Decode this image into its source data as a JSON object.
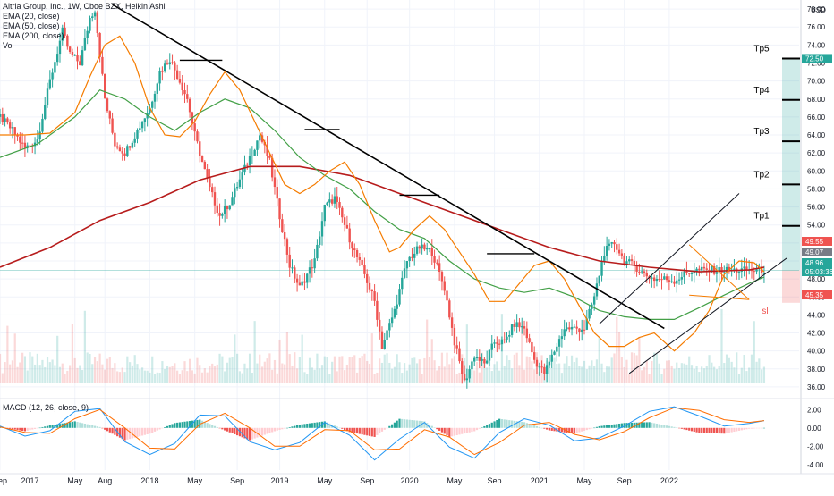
{
  "legend": {
    "title": "Altria Group, Inc., 1W, Cboe BZX, Heikin Ashi",
    "ema20": "EMA (20, close)",
    "ema50": "EMA (50, close)",
    "ema200": "EMA (200, close)",
    "vol": "Vol",
    "macd": "MACD (12, 26, close, 9)"
  },
  "price_axis": {
    "currency": "USD",
    "ticks": [
      "78.00",
      "76.00",
      "74.00",
      "72.00",
      "70.00",
      "68.00",
      "66.00",
      "64.00",
      "62.00",
      "60.00",
      "58.00",
      "56.00",
      "54.00",
      "52.00",
      "50.00",
      "48.00",
      "46.00",
      "44.00",
      "42.00",
      "40.00",
      "38.00",
      "36.00"
    ],
    "badges": [
      {
        "text": "72.50",
        "value": 72.5,
        "color": "#26a69a"
      },
      {
        "text": "49.55",
        "value": 49.55,
        "color": "#ef5350"
      },
      {
        "text": "49.07",
        "value": 49.07,
        "color": "#787b86"
      },
      {
        "text": "48.96",
        "value": 48.96,
        "color": "#26a69a"
      },
      {
        "text": "05:03:36",
        "value": 48.0,
        "color": "#26a69a"
      },
      {
        "text": "45.35",
        "value": 45.35,
        "color": "#ef5350"
      }
    ]
  },
  "macd_axis": {
    "ticks": [
      "2.00",
      "0.00",
      "-2.00",
      "-4.00"
    ]
  },
  "time_axis": {
    "labels": [
      "Sep",
      "2017",
      "May",
      "Aug",
      "2018",
      "May",
      "Sep",
      "2019",
      "May",
      "Sep",
      "2020",
      "May",
      "Sep",
      "2021",
      "May",
      "Sep",
      "2022"
    ]
  },
  "annotations": {
    "targets": [
      {
        "label": "Tp5",
        "value": 72.5
      },
      {
        "label": "Tp4",
        "value": 67.9
      },
      {
        "label": "Tp3",
        "value": 63.3
      },
      {
        "label": "Tp2",
        "value": 58.5
      },
      {
        "label": "Tp1",
        "value": 53.9
      }
    ],
    "stop": {
      "label": "sl",
      "value": 45.35
    }
  },
  "chart_data": {
    "type": "candlestick",
    "title": "Altria Group, Inc., 1W, Cboe BZX, Heikin Ashi",
    "ylabel": "USD",
    "ylim": [
      35,
      79
    ],
    "x_ticks": [
      "Sep",
      "2017",
      "May",
      "Aug",
      "2018",
      "May",
      "Sep",
      "2019",
      "May",
      "Sep",
      "2020",
      "May",
      "Sep",
      "2021",
      "May",
      "Sep",
      "2022"
    ],
    "x_range_weeks": [
      0,
      320
    ],
    "price_path_weeks": [
      0,
      5,
      10,
      15,
      20,
      25,
      28,
      32,
      36,
      38,
      42,
      46,
      50,
      55,
      60,
      64,
      68,
      72,
      75,
      78,
      84,
      88,
      92,
      96,
      100,
      104,
      108,
      112,
      116,
      120,
      126,
      130,
      134,
      138,
      142,
      146,
      150,
      153,
      158,
      163,
      168,
      173,
      178,
      182,
      186,
      190,
      194,
      198,
      202,
      206,
      210,
      214,
      218,
      222,
      226,
      230,
      234,
      238,
      242,
      246,
      250,
      254,
      258,
      262,
      266,
      270,
      274,
      278,
      282,
      286,
      290
    ],
    "price_path_values": [
      66.0,
      64.5,
      62.5,
      63.5,
      70.0,
      75.5,
      73.0,
      72.0,
      77.0,
      78.0,
      68.0,
      63.0,
      62.0,
      64.5,
      67.0,
      71.0,
      72.5,
      70.0,
      68.0,
      64.0,
      58.0,
      55.0,
      56.5,
      59.0,
      61.5,
      64.0,
      61.0,
      55.0,
      49.5,
      47.0,
      50.0,
      56.0,
      57.0,
      54.0,
      51.0,
      48.5,
      45.5,
      40.5,
      44.5,
      50.0,
      51.5,
      51.0,
      47.0,
      41.0,
      36.5,
      39.5,
      38.5,
      41.0,
      41.0,
      43.0,
      42.5,
      39.0,
      37.5,
      40.0,
      42.5,
      42.5,
      42.5,
      46.0,
      51.0,
      52.0,
      50.0,
      49.5,
      48.5,
      48.0,
      48.0,
      47.8,
      48.5,
      48.96,
      48.96,
      48.96,
      48.96
    ],
    "ema20_values": [
      64.0,
      64.0,
      64.2,
      66.5,
      70.5,
      74.0,
      75.0,
      72.0,
      67.0,
      64.0,
      63.8,
      65.5,
      68.5,
      71.0,
      69.0,
      65.5,
      62.0,
      58.5,
      57.5,
      58.5,
      60.0,
      61.0,
      58.5,
      54.5,
      51.0,
      51.5,
      53.5,
      55.0,
      53.5,
      51.0,
      48.5,
      45.5,
      45.5,
      47.5,
      49.5,
      50.0,
      48.0,
      45.0,
      42.0,
      40.5,
      40.5,
      41.5,
      42.0,
      41.0,
      40.0,
      41.0,
      42.0,
      44.5,
      48.5,
      50.0,
      49.8,
      48.8
    ],
    "ema20_weeks": [
      0,
      10,
      20,
      30,
      36,
      42,
      48,
      54,
      60,
      66,
      72,
      78,
      84,
      90,
      96,
      102,
      108,
      114,
      120,
      126,
      132,
      138,
      144,
      150,
      156,
      160,
      166,
      172,
      178,
      184,
      190,
      196,
      202,
      208,
      214,
      220,
      226,
      232,
      238,
      244,
      250,
      256,
      262,
      266,
      270,
      274,
      278,
      284,
      290,
      296,
      302,
      306
    ],
    "ema50_weeks": [
      0,
      15,
      30,
      40,
      50,
      60,
      70,
      80,
      90,
      100,
      110,
      120,
      130,
      140,
      150,
      160,
      170,
      180,
      190,
      200,
      210,
      220,
      230,
      240,
      250,
      260,
      270,
      280,
      290,
      300,
      306
    ],
    "ema50_values": [
      61.5,
      63.0,
      66.0,
      69.0,
      68.0,
      66.0,
      64.5,
      66.5,
      68.0,
      67.0,
      64.5,
      61.5,
      59.5,
      58.0,
      55.5,
      53.5,
      52.5,
      50.0,
      48.0,
      47.0,
      46.5,
      47.0,
      46.0,
      44.5,
      43.8,
      43.5,
      43.5,
      44.8,
      46.2,
      47.5,
      48.2
    ],
    "ema200_weeks": [
      0,
      20,
      40,
      60,
      80,
      100,
      120,
      140,
      160,
      180,
      200,
      220,
      240,
      260,
      280,
      300,
      306
    ],
    "ema200_values": [
      49.3,
      51.5,
      54.5,
      56.5,
      59.0,
      60.5,
      60.5,
      59.5,
      57.5,
      55.5,
      53.5,
      51.5,
      50.0,
      49.3,
      48.8,
      49.0,
      49.3
    ],
    "trendlines": [
      {
        "name": "descending trendline",
        "x": [
          45,
          266
        ],
        "y": [
          78.5,
          42.5
        ]
      },
      {
        "name": "channel lower",
        "x": [
          252,
          315
        ],
        "y": [
          37.5,
          50.3
        ]
      },
      {
        "name": "channel upper",
        "x": [
          240,
          296
        ],
        "y": [
          43.0,
          57.5
        ]
      },
      {
        "name": "triangle top",
        "x": [
          276,
          300
        ],
        "y": [
          51.8,
          45.7
        ]
      },
      {
        "name": "triangle bottom",
        "x": [
          276,
          300
        ],
        "y": [
          46.2,
          45.7
        ]
      }
    ],
    "resistance_marks": [
      {
        "x": [
          72,
          89
        ],
        "y": 72.3
      },
      {
        "x": [
          122,
          136
        ],
        "y": 64.6
      },
      {
        "x": [
          160,
          176
        ],
        "y": 57.3
      },
      {
        "x": [
          195,
          214
        ],
        "y": 50.8
      }
    ],
    "volume": {
      "ymax": 100
    },
    "macd": {
      "ylim": [
        -4.6,
        3.0
      ],
      "weeks": [
        0,
        10,
        20,
        30,
        40,
        50,
        60,
        70,
        80,
        90,
        100,
        110,
        120,
        130,
        140,
        150,
        160,
        170,
        180,
        190,
        200,
        210,
        220,
        230,
        240,
        250,
        260,
        270,
        280,
        290,
        300,
        306
      ],
      "macd_values": [
        0.2,
        -0.9,
        -0.3,
        1.8,
        2.1,
        -1.5,
        -2.9,
        -1.7,
        1.4,
        1.3,
        -1.5,
        -2.4,
        -1.6,
        0.6,
        -0.8,
        -3.5,
        -1.2,
        0.6,
        -2.1,
        -3.3,
        -0.5,
        1.0,
        0.3,
        -1.4,
        -1.1,
        0.2,
        1.8,
        2.3,
        1.3,
        0.2,
        0.5,
        0.8
      ],
      "signal_values": [
        0.1,
        -0.5,
        -0.6,
        1.0,
        2.0,
        0.0,
        -2.2,
        -2.3,
        0.4,
        1.6,
        0.0,
        -2.0,
        -2.0,
        -0.2,
        -0.3,
        -2.4,
        -2.3,
        -0.2,
        -1.0,
        -2.9,
        -1.6,
        0.3,
        0.6,
        -0.7,
        -1.3,
        -0.4,
        1.1,
        2.2,
        1.9,
        0.9,
        0.6,
        0.8
      ]
    }
  }
}
